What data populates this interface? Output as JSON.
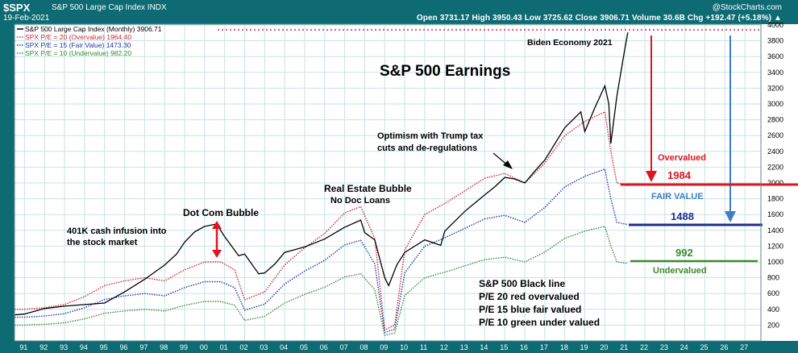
{
  "header": {
    "symbol": "$SPX",
    "name": "S&P 500 Large Cap Index",
    "exchange": "INDX",
    "date": "19-Feb-2021",
    "watermark": "@StockCharts.com",
    "ohlc_line": "Open 3731.17  High 3950.43  Low 3725.62  Close 3906.71  Volume 30.6B  Chg +192.47 (+5.18%) ▲"
  },
  "legend": [
    {
      "text": "S&P 500 Large Cap Index (Monthly) 3906.71",
      "color": "#000000",
      "style": "solid"
    },
    {
      "text": "SPX P/E = 20 (Overvalue) 1964.40",
      "color": "#d0263c",
      "style": "dotted"
    },
    {
      "text": "SPX P/E = 15 (Fair Value) 1473.30",
      "color": "#2236a6",
      "style": "dotted"
    },
    {
      "text": "SPX P/E = 10 (Undervalue) 982.20",
      "color": "#3a8a2a",
      "style": "dotted"
    }
  ],
  "annotations": {
    "title": "S&P 500 Earnings",
    "biden": "Biden Economy 2021",
    "trump_1": "Optimism with Trump tax",
    "trump_2": "cuts and de-regulations",
    "realestate_1": "Real Estate Bubble",
    "realestate_2": "No Doc Loans",
    "dotcom": "Dot Com Bubble",
    "k401_1": "401K cash infusion into",
    "k401_2": "the stock market",
    "overvalued": "Overvalued",
    "over_value": "1984",
    "fair_label": "FAIR VALUE",
    "fair_value": "1488",
    "under_value": "992",
    "undervalued": "Undervalued",
    "note_1": "S&P 500 Black line",
    "note_2": "P/E 20 red overvalued",
    "note_3": "P/E 15 blue fair valued",
    "note_4": "P/E 10 green under valued"
  },
  "colors": {
    "background": "#0e6b73",
    "plot_bg": "#ffffff",
    "grid": "#c7e3e5",
    "index": "#000000",
    "pe20": "#d0263c",
    "pe15": "#2236a6",
    "pe10": "#3a8a2a",
    "arrow_red": "#e0141e",
    "arrow_blue": "#3d7fc4",
    "line_blue": "#1f2e8c",
    "line_green": "#3a8a2a"
  },
  "chart_data": {
    "type": "line",
    "title": "S&P 500 Earnings",
    "xlabel": "",
    "ylabel": "",
    "x_ticks": [
      "91",
      "92",
      "93",
      "94",
      "95",
      "96",
      "97",
      "98",
      "99",
      "00",
      "01",
      "02",
      "03",
      "04",
      "05",
      "06",
      "07",
      "08",
      "09",
      "10",
      "11",
      "12",
      "13",
      "14",
      "15",
      "16",
      "17",
      "18",
      "19",
      "20",
      "21",
      "22",
      "23",
      "24",
      "25",
      "26",
      "27"
    ],
    "y_ticks": [
      200,
      400,
      600,
      800,
      1000,
      1200,
      1400,
      1600,
      1800,
      2000,
      2200,
      2400,
      2600,
      2800,
      3000,
      3200,
      3400,
      3600,
      3800,
      4000
    ],
    "xlim": [
      1990.5,
      2027.8
    ],
    "ylim": [
      0,
      4000
    ],
    "grid": true,
    "legend_position": "top-left",
    "series": [
      {
        "name": "S&P 500 Large Cap Index (Monthly) 3906.71",
        "color": "#000000",
        "x": [
          1990.5,
          1991,
          1992,
          1993,
          1994,
          1995,
          1996,
          1997,
          1998,
          1998.6,
          1999,
          1999.5,
          2000,
          2000.6,
          2001,
          2001.7,
          2002,
          2002.7,
          2003,
          2003.5,
          2004,
          2005,
          2006,
          2007,
          2007.8,
          2008,
          2008.5,
          2009,
          2009.2,
          2009.6,
          2010,
          2011,
          2011.8,
          2012,
          2013,
          2014,
          2014.5,
          2015,
          2015.5,
          2016,
          2016.5,
          2017,
          2018,
          2018.8,
          2019,
          2019.5,
          2020,
          2020.2,
          2020.3,
          2020.6,
          2021,
          2021.15
        ],
        "y": [
          330,
          340,
          410,
          440,
          460,
          480,
          620,
          780,
          960,
          1100,
          1250,
          1380,
          1450,
          1480,
          1320,
          1080,
          1100,
          850,
          860,
          970,
          1120,
          1190,
          1290,
          1440,
          1530,
          1370,
          1280,
          800,
          700,
          960,
          1120,
          1280,
          1210,
          1390,
          1640,
          1850,
          1950,
          2070,
          2050,
          2000,
          2150,
          2290,
          2700,
          2900,
          2650,
          2950,
          3230,
          3000,
          2500,
          3100,
          3700,
          3906
        ]
      },
      {
        "name": "SPX P/E = 20 (Overvalue) 1964.40",
        "color": "#d0263c",
        "x": [
          1990.5,
          1991,
          1992,
          1993,
          1994,
          1995,
          1996,
          1997,
          1998,
          1999,
          2000,
          2000.8,
          2001.5,
          2002,
          2003,
          2004,
          2005,
          2006,
          2007,
          2007.8,
          2008.5,
          2009,
          2009.5,
          2010,
          2011,
          2012,
          2013,
          2014,
          2015,
          2016,
          2017,
          2018,
          2019,
          2020,
          2020.3,
          2020.6,
          2021.15
        ],
        "y": [
          400,
          400,
          420,
          460,
          560,
          700,
          760,
          800,
          760,
          900,
          1000,
          1000,
          900,
          520,
          620,
          960,
          1180,
          1360,
          1620,
          1700,
          1300,
          140,
          200,
          1150,
          1600,
          1740,
          1900,
          2060,
          2120,
          2000,
          2250,
          2600,
          2780,
          2900,
          2400,
          2000,
          1964
        ]
      },
      {
        "name": "SPX P/E = 15 (Fair Value) 1473.30",
        "color": "#2236a6",
        "x": [
          1990.5,
          1991,
          1992,
          1993,
          1994,
          1995,
          1996,
          1997,
          1998,
          1999,
          2000,
          2000.8,
          2001.5,
          2002,
          2003,
          2004,
          2005,
          2006,
          2007,
          2007.8,
          2008.5,
          2009,
          2009.5,
          2010,
          2011,
          2012,
          2013,
          2014,
          2015,
          2016,
          2017,
          2018,
          2019,
          2020,
          2020.3,
          2020.6,
          2021.15
        ],
        "y": [
          300,
          300,
          315,
          345,
          420,
          525,
          570,
          600,
          570,
          675,
          750,
          750,
          675,
          390,
          465,
          720,
          885,
          1020,
          1215,
          1275,
          975,
          105,
          150,
          860,
          1200,
          1305,
          1425,
          1545,
          1590,
          1500,
          1690,
          1950,
          2085,
          2175,
          1800,
          1500,
          1473
        ]
      },
      {
        "name": "SPX P/E = 10 (Undervalue) 982.20",
        "color": "#3a8a2a",
        "x": [
          1990.5,
          1991,
          1992,
          1993,
          1994,
          1995,
          1996,
          1997,
          1998,
          1999,
          2000,
          2000.8,
          2001.5,
          2002,
          2003,
          2004,
          2005,
          2006,
          2007,
          2007.8,
          2008.5,
          2009,
          2009.5,
          2010,
          2011,
          2012,
          2013,
          2014,
          2015,
          2016,
          2017,
          2018,
          2019,
          2020,
          2020.3,
          2020.6,
          2021.15
        ],
        "y": [
          200,
          200,
          210,
          230,
          280,
          350,
          380,
          400,
          380,
          450,
          500,
          500,
          450,
          260,
          310,
          480,
          590,
          680,
          810,
          850,
          650,
          70,
          100,
          575,
          800,
          870,
          950,
          1030,
          1060,
          1000,
          1125,
          1300,
          1390,
          1450,
          1200,
          1000,
          982
        ]
      }
    ]
  }
}
